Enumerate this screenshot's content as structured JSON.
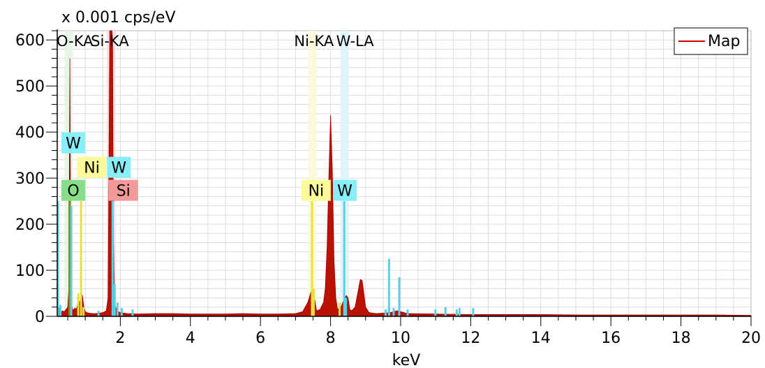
{
  "chart_data": {
    "type": "area",
    "title": "",
    "ylabel": "x 0.001 cps/eV",
    "xlabel": "keV",
    "xlim": [
      0.2,
      20
    ],
    "ylim": [
      0,
      620
    ],
    "grid": true,
    "x_ticks": [
      2,
      4,
      6,
      8,
      10,
      12,
      14,
      16,
      18,
      20
    ],
    "y_ticks": [
      0,
      100,
      200,
      300,
      400,
      500,
      600
    ],
    "legend": {
      "position": "top-right",
      "entries": [
        {
          "name": "Map",
          "color": "#cc0000"
        }
      ]
    },
    "series": [
      {
        "name": "Map",
        "color": "#bb1100",
        "x": [
          0.2,
          0.25,
          0.3,
          0.35,
          0.4,
          0.45,
          0.5,
          0.53,
          0.56,
          0.58,
          0.61,
          0.65,
          0.7,
          0.75,
          0.8,
          0.85,
          0.88,
          0.92,
          0.96,
          1.0,
          1.05,
          1.1,
          1.2,
          1.3,
          1.4,
          1.5,
          1.6,
          1.65,
          1.7,
          1.72,
          1.74,
          1.76,
          1.78,
          1.8,
          1.83,
          1.9,
          2.0,
          2.2,
          2.5,
          3.0,
          3.5,
          4.0,
          4.5,
          5.0,
          5.5,
          6.0,
          6.5,
          7.0,
          7.2,
          7.35,
          7.45,
          7.5,
          7.55,
          7.6,
          7.7,
          7.8,
          7.85,
          7.9,
          7.95,
          8.0,
          8.05,
          8.1,
          8.15,
          8.2,
          8.3,
          8.4,
          8.45,
          8.5,
          8.55,
          8.6,
          8.7,
          8.8,
          8.85,
          8.9,
          8.95,
          9.0,
          9.1,
          9.3,
          9.5,
          9.7,
          9.9,
          10.2,
          11.0,
          12.0,
          13.0,
          14.0,
          15.0,
          16.0,
          17.0,
          18.0,
          19.0,
          20.0
        ],
        "y": [
          10,
          18,
          8,
          12,
          10,
          15,
          20,
          60,
          560,
          200,
          25,
          12,
          18,
          15,
          35,
          30,
          50,
          45,
          20,
          10,
          8,
          7,
          6,
          6,
          7,
          8,
          12,
          40,
          620,
          620,
          620,
          620,
          600,
          200,
          30,
          12,
          8,
          6,
          5,
          6,
          6,
          5,
          5,
          5,
          6,
          5,
          5,
          6,
          10,
          30,
          55,
          50,
          35,
          12,
          15,
          30,
          60,
          150,
          300,
          437,
          320,
          120,
          40,
          15,
          20,
          40,
          45,
          40,
          15,
          12,
          20,
          60,
          80,
          78,
          50,
          20,
          8,
          6,
          7,
          8,
          12,
          6,
          5,
          4,
          4,
          4,
          3,
          3,
          3,
          3,
          3,
          2
        ]
      }
    ],
    "element_bars": [
      {
        "x": 0.22,
        "height": 250,
        "color": "#5ad2e6"
      },
      {
        "x": 0.29,
        "height": 25,
        "color": "#5ad2e6"
      },
      {
        "x": 0.55,
        "height": 255,
        "color": "#8a8a10"
      },
      {
        "x": 0.6,
        "height": 240,
        "color": "#5ad2e6"
      },
      {
        "x": 0.8,
        "height": 50,
        "color": "#e8e040"
      },
      {
        "x": 0.88,
        "height": 250,
        "color": "#e8e040"
      },
      {
        "x": 0.95,
        "height": 20,
        "color": "#e8e040"
      },
      {
        "x": 1.38,
        "height": 12,
        "color": "#5ad2e6"
      },
      {
        "x": 1.78,
        "height": 250,
        "color": "#5ad2e6"
      },
      {
        "x": 1.84,
        "height": 70,
        "color": "#5ad2e6"
      },
      {
        "x": 1.92,
        "height": 30,
        "color": "#5ad2e6"
      },
      {
        "x": 2.04,
        "height": 18,
        "color": "#5ad2e6"
      },
      {
        "x": 2.35,
        "height": 15,
        "color": "#5ad2e6"
      },
      {
        "x": 7.47,
        "height": 250,
        "color": "#e8e040"
      },
      {
        "x": 7.52,
        "height": 60,
        "color": "#e8e040"
      },
      {
        "x": 8.26,
        "height": 30,
        "color": "#e8e040"
      },
      {
        "x": 8.39,
        "height": 250,
        "color": "#5ad2e6"
      },
      {
        "x": 8.44,
        "height": 40,
        "color": "#5ad2e6"
      },
      {
        "x": 9.57,
        "height": 15,
        "color": "#5ad2e6"
      },
      {
        "x": 9.67,
        "height": 125,
        "color": "#5ad2e6"
      },
      {
        "x": 9.8,
        "height": 18,
        "color": "#5ad2e6"
      },
      {
        "x": 9.96,
        "height": 85,
        "color": "#5ad2e6"
      },
      {
        "x": 10.2,
        "height": 15,
        "color": "#5ad2e6"
      },
      {
        "x": 10.99,
        "height": 15,
        "color": "#5ad2e6"
      },
      {
        "x": 11.28,
        "height": 20,
        "color": "#5ad2e6"
      },
      {
        "x": 11.6,
        "height": 15,
        "color": "#5ad2e6"
      },
      {
        "x": 11.68,
        "height": 18,
        "color": "#5ad2e6"
      },
      {
        "x": 12.07,
        "height": 18,
        "color": "#5ad2e6"
      }
    ],
    "line_markers": [
      {
        "label": "O-KA",
        "x": 0.525,
        "color": "#e6f5e6"
      },
      {
        "label": "Si-KA",
        "x": 1.74,
        "color": "#fadada"
      },
      {
        "label": "Ni-KA",
        "x": 7.48,
        "color": "#fbfad8"
      },
      {
        "label": "W-LA",
        "x": 8.4,
        "color": "#dcf4f8"
      }
    ],
    "marker_labels": [
      {
        "text": "O-KA",
        "x": 0.22
      },
      {
        "text": "Si-KA",
        "x": 1.2
      },
      {
        "text": "Ni-KA",
        "x": 7.0
      },
      {
        "text": "W-LA",
        "x": 8.2
      }
    ],
    "element_tags": [
      {
        "text": "W",
        "x": 0.2,
        "y": 375,
        "bg": "#88eef8"
      },
      {
        "text": "Ni",
        "x": 0.65,
        "y": 322,
        "bg": "#fafa99"
      },
      {
        "text": "W",
        "x": 1.5,
        "y": 322,
        "bg": "#88eef8"
      },
      {
        "text": "O",
        "x": 0.2,
        "y": 272,
        "bg": "#88dd88"
      },
      {
        "text": "Si",
        "x": 1.55,
        "y": 272,
        "bg": "#f29a9a"
      },
      {
        "text": "Ni",
        "x": 7.05,
        "y": 272,
        "bg": "#fafa99"
      },
      {
        "text": "W",
        "x": 7.95,
        "y": 272,
        "bg": "#88eef8"
      }
    ]
  }
}
